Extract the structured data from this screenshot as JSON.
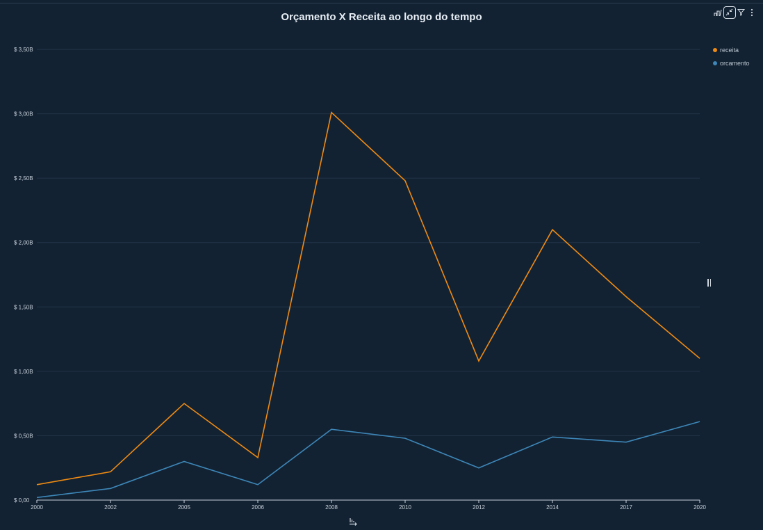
{
  "chart_data": {
    "type": "line",
    "title": "Orçamento X Receita ao longo do tempo",
    "categories": [
      "2000",
      "2002",
      "2005",
      "2006",
      "2008",
      "2010",
      "2012",
      "2014",
      "2017",
      "2020"
    ],
    "y_tick_labels": [
      "$ 0,00",
      "$ 0,50B",
      "$ 1,00B",
      "$ 1,50B",
      "$ 2,00B",
      "$ 2,50B",
      "$ 3,00B",
      "$ 3,50B"
    ],
    "ylim": [
      0,
      3.5
    ],
    "y_unit": "B",
    "grid": true,
    "legend_position": "top-right",
    "series": [
      {
        "name": "receita",
        "color": "#ef8b12",
        "values": [
          0.12,
          0.22,
          0.75,
          0.33,
          3.01,
          2.48,
          1.08,
          2.1,
          1.58,
          1.1
        ]
      },
      {
        "name": "orcamento",
        "color": "#3d87b9",
        "values": [
          0.02,
          0.09,
          0.3,
          0.12,
          0.55,
          0.48,
          0.25,
          0.49,
          0.45,
          0.61
        ]
      }
    ]
  },
  "toolbar": {
    "icons": [
      "chart-settings-icon",
      "collapse-icon",
      "filter-icon",
      "more-options-icon"
    ]
  }
}
